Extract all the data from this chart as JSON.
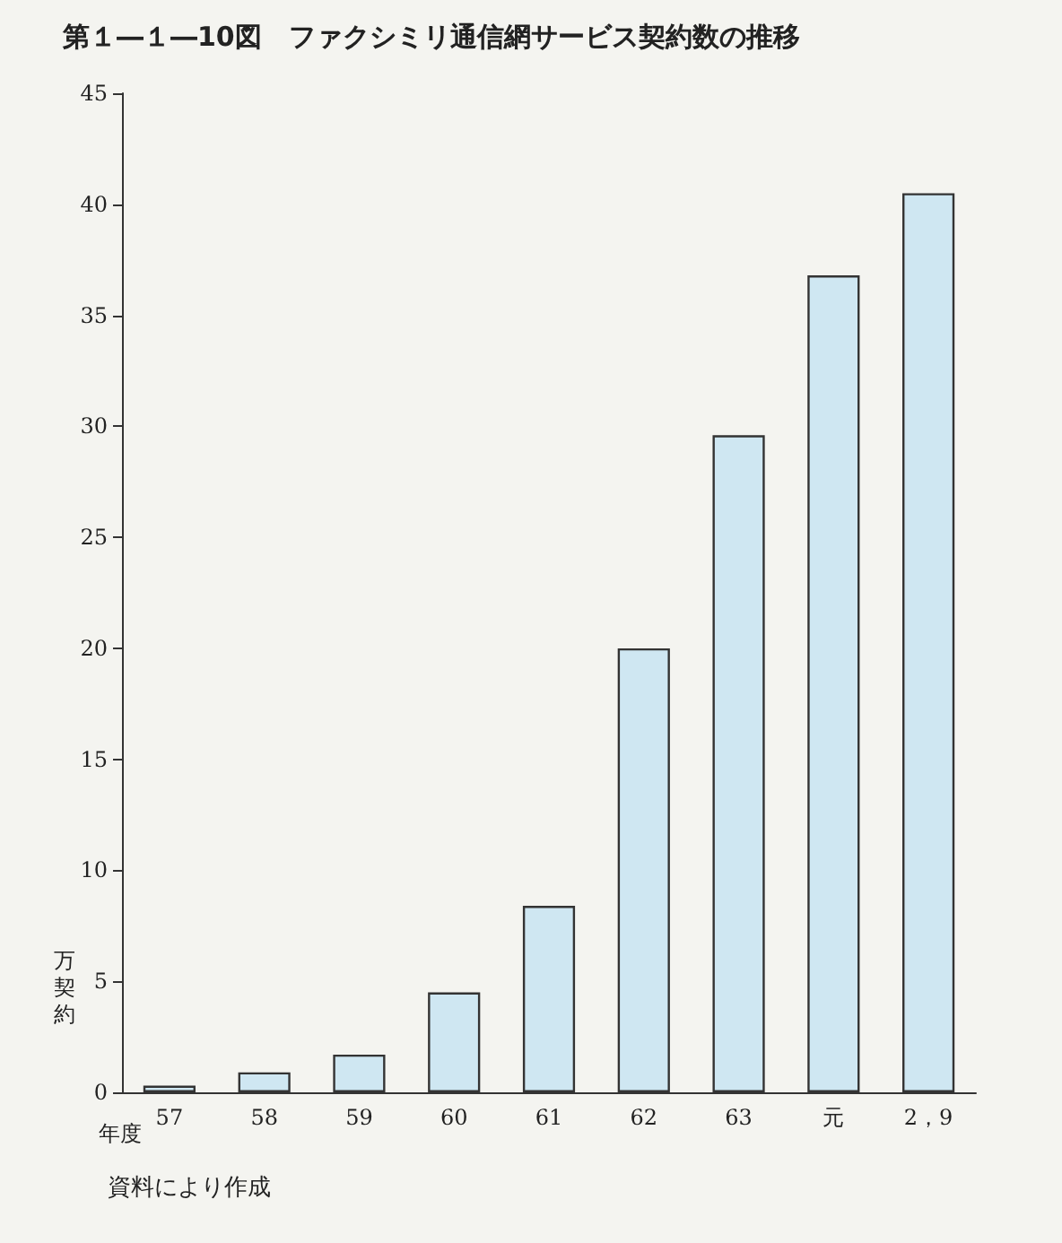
{
  "chart_data": {
    "type": "bar",
    "title": "第１―１―10図　ファクシミリ通信網サービス契約数の推移",
    "categories": [
      "57",
      "58",
      "59",
      "60",
      "61",
      "62",
      "63",
      "元",
      "2，9"
    ],
    "values": [
      0.3,
      0.9,
      1.7,
      4.5,
      8.4,
      20.0,
      29.6,
      36.8,
      40.5
    ],
    "color": "#cfe7f2",
    "ylim": [
      0,
      45
    ],
    "yticks": [
      0,
      5,
      10,
      15,
      20,
      25,
      30,
      35,
      40,
      45
    ],
    "xlabel": "年度",
    "ylabel": "万契約",
    "annotations": [
      "資料により作成"
    ],
    "grid": false
  }
}
